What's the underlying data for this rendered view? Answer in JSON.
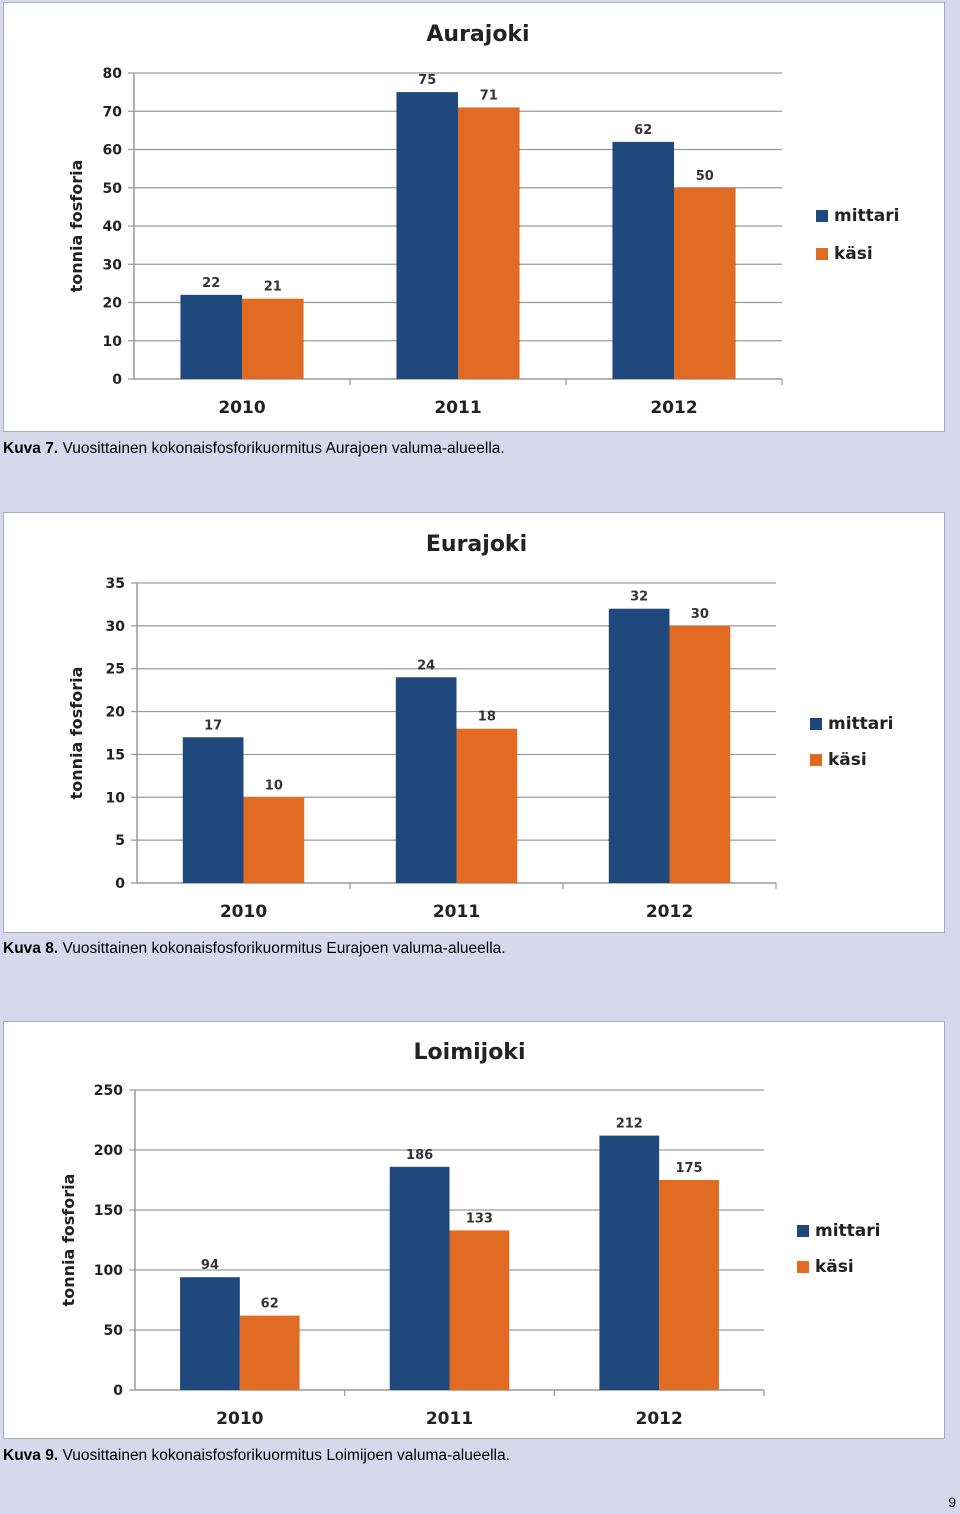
{
  "chart_data": [
    {
      "type": "bar",
      "title": "Aurajoki",
      "ylabel": "tonnia fosforia",
      "xlabel": "",
      "categories": [
        "2010",
        "2011",
        "2012"
      ],
      "series": [
        {
          "name": "mittari",
          "values": [
            22,
            75,
            62
          ],
          "color": "#1f497d"
        },
        {
          "name": "käsi",
          "values": [
            21,
            71,
            50
          ],
          "color": "#e26b23"
        }
      ],
      "ylim": [
        0,
        80
      ],
      "yticks": [
        0,
        10,
        20,
        30,
        40,
        50,
        60,
        70,
        80
      ],
      "grid": true,
      "legend": "right"
    },
    {
      "type": "bar",
      "title": "Eurajoki",
      "ylabel": "tonnia fosforia",
      "xlabel": "",
      "categories": [
        "2010",
        "2011",
        "2012"
      ],
      "series": [
        {
          "name": "mittari",
          "values": [
            17,
            24,
            32
          ],
          "color": "#1f497d"
        },
        {
          "name": "käsi",
          "values": [
            10,
            18,
            30
          ],
          "color": "#e26b23"
        }
      ],
      "ylim": [
        0,
        35
      ],
      "yticks": [
        0,
        5,
        10,
        15,
        20,
        25,
        30,
        35
      ],
      "grid": true,
      "legend": "right"
    },
    {
      "type": "bar",
      "title": "Loimijoki",
      "ylabel": "tonnia fosforia",
      "xlabel": "",
      "categories": [
        "2010",
        "2011",
        "2012"
      ],
      "series": [
        {
          "name": "mittari",
          "values": [
            94,
            186,
            212
          ],
          "color": "#1f497d"
        },
        {
          "name": "käsi",
          "values": [
            62,
            133,
            175
          ],
          "color": "#e26b23"
        }
      ],
      "ylim": [
        0,
        250
      ],
      "yticks": [
        0,
        50,
        100,
        150,
        200,
        250
      ],
      "grid": true,
      "legend": "right"
    }
  ],
  "captions": [
    {
      "label": "Kuva 7.",
      "text": " Vuosittainen kokonaisfosforikuormitus Aurajoen valuma-alueella."
    },
    {
      "label": "Kuva 8.",
      "text": " Vuosittainen kokonaisfosforikuormitus Eurajoen valuma-alueella."
    },
    {
      "label": "Kuva 9.",
      "text": " Vuosittainen kokonaisfosforikuormitus Loimijoen valuma-alueella."
    }
  ],
  "page_number": "9"
}
